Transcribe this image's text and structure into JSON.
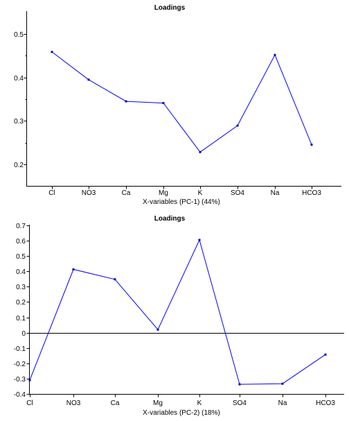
{
  "chart_data": [
    {
      "type": "line",
      "title": "Loadings",
      "xlabel": "X-variables (PC-1) (44%)",
      "ylabel": "",
      "categories": [
        "Cl",
        "NO3",
        "Ca",
        "Mg",
        "K",
        "SO4",
        "Na",
        "HCO3"
      ],
      "values": [
        0.459,
        0.395,
        0.345,
        0.341,
        0.228,
        0.289,
        0.452,
        0.245
      ],
      "ylim": [
        0.15,
        0.55
      ],
      "yticks": [
        0.2,
        0.3,
        0.4,
        0.5
      ],
      "ytick_labels": [
        "0.2",
        "0.3",
        "0.4",
        "0.5"
      ],
      "zero_line": false,
      "series_color": "#0000ff"
    },
    {
      "type": "line",
      "title": "Loadings",
      "xlabel": "X-variables (PC-2) (18%)",
      "ylabel": "",
      "categories": [
        "Cl",
        "NO3",
        "Ca",
        "Mg",
        "K",
        "SO4",
        "Na",
        "HCO3"
      ],
      "values": [
        -0.31,
        0.413,
        0.348,
        0.02,
        0.605,
        -0.337,
        -0.333,
        -0.143
      ],
      "ylim": [
        -0.4,
        0.7
      ],
      "yticks": [
        -0.4,
        -0.3,
        -0.2,
        -0.1,
        0,
        0.1,
        0.2,
        0.3,
        0.4,
        0.5,
        0.6,
        0.7
      ],
      "ytick_labels": [
        "-0.4",
        "-0.3",
        "-0.2",
        "-0.1",
        "0",
        "0.1",
        "0.2",
        "0.3",
        "0.4",
        "0.5",
        "0.6",
        "0.7"
      ],
      "zero_line": true,
      "series_color": "#0000ff"
    }
  ]
}
